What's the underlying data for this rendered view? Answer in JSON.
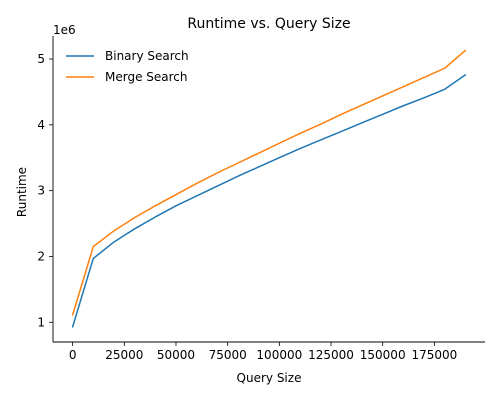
{
  "chart_data": {
    "type": "line",
    "title": "Runtime vs. Query Size",
    "xlabel": "Query Size",
    "ylabel": "Runtime",
    "y_offset_label": "1e6",
    "xlim": [
      -9500,
      199500
    ],
    "ylim": [
      700000,
      5350000
    ],
    "x_ticks": [
      0,
      25000,
      50000,
      75000,
      100000,
      125000,
      150000,
      175000
    ],
    "y_ticks": [
      1000000,
      2000000,
      3000000,
      4000000,
      5000000
    ],
    "x_tick_labels": [
      "0",
      "25000",
      "50000",
      "75000",
      "100000",
      "125000",
      "150000",
      "175000"
    ],
    "y_tick_labels": [
      "1",
      "2",
      "3",
      "4",
      "5"
    ],
    "grid": false,
    "legend_position": "top-left",
    "x": [
      0,
      10000,
      20000,
      30000,
      40000,
      50000,
      60000,
      70000,
      80000,
      90000,
      100000,
      110000,
      120000,
      130000,
      140000,
      150000,
      160000,
      170000,
      180000,
      190000
    ],
    "series": [
      {
        "name": "Binary Search",
        "color": "#1f77b4",
        "values": [
          930000,
          1970000,
          2220000,
          2420000,
          2600000,
          2770000,
          2920000,
          3070000,
          3220000,
          3360000,
          3500000,
          3640000,
          3770000,
          3900000,
          4030000,
          4160000,
          4290000,
          4410000,
          4540000,
          4760000
        ]
      },
      {
        "name": "Merge Search",
        "color": "#ff7f0e",
        "values": [
          1110000,
          2150000,
          2390000,
          2590000,
          2770000,
          2940000,
          3110000,
          3270000,
          3420000,
          3570000,
          3720000,
          3870000,
          4010000,
          4160000,
          4300000,
          4440000,
          4580000,
          4720000,
          4860000,
          5130000
        ]
      }
    ]
  }
}
